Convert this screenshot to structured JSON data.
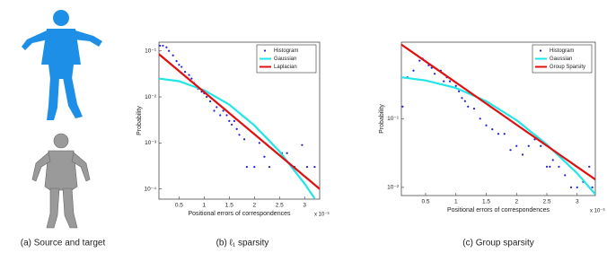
{
  "figure_a": {
    "caption": "(a) Source and target"
  },
  "chart_data": [
    {
      "type": "line",
      "caption": "(b) ℓ₁ sparsity",
      "xlabel": "Positional errors of correspondences",
      "ylabel": "Probability",
      "x_multiplier": "x 10⁻³",
      "log_y": true,
      "legend": "upper right",
      "xlim": [
        0.1,
        3.3
      ],
      "xticks": [
        0.5,
        1,
        1.5,
        2,
        2.5,
        3
      ],
      "ylim": [
        6e-05,
        0.155
      ],
      "yticks": [
        {
          "value": 0.1,
          "label": "10⁻¹"
        },
        {
          "value": 0.01,
          "label": "10⁻²"
        },
        {
          "value": 0.001,
          "label": "10⁻³"
        },
        {
          "value": 0.0001,
          "label": "10⁻⁴"
        }
      ],
      "series": [
        {
          "name": "Histogram",
          "color": "#1f1fd6",
          "style": "points",
          "x": [
            0.12,
            0.18,
            0.25,
            0.3,
            0.38,
            0.45,
            0.5,
            0.55,
            0.62,
            0.7,
            0.75,
            0.8,
            0.88,
            0.95,
            1.0,
            1.05,
            1.12,
            1.2,
            1.25,
            1.32,
            1.38,
            1.45,
            1.5,
            1.55,
            1.6,
            1.65,
            1.7,
            1.8,
            1.85,
            2.0,
            2.1,
            2.2,
            2.3,
            2.45,
            2.55,
            2.65,
            2.8,
            2.95,
            3.05,
            3.2
          ],
          "values": [
            0.13,
            0.13,
            0.12,
            0.1,
            0.08,
            0.06,
            0.05,
            0.045,
            0.035,
            0.03,
            0.025,
            0.02,
            0.015,
            0.013,
            0.012,
            0.01,
            0.008,
            0.005,
            0.006,
            0.004,
            0.005,
            0.004,
            0.003,
            0.0025,
            0.003,
            0.002,
            0.0015,
            0.0012,
            0.0003,
            0.0003,
            0.001,
            0.0005,
            0.0003,
            0.0006,
            0.0006,
            0.0006,
            0.0003,
            0.0009,
            0.0003,
            0.0003
          ]
        },
        {
          "name": "Gaussian",
          "color": "#22e6e6",
          "style": "line",
          "x": [
            0.1,
            0.5,
            1,
            1.5,
            2,
            2.5,
            3,
            3.2
          ],
          "values": [
            0.025,
            0.022,
            0.014,
            0.0068,
            0.0024,
            0.00065,
            0.00013,
            6.2e-05
          ]
        },
        {
          "name": "Laplacian",
          "color": "#e01010",
          "style": "line",
          "x": [
            0.1,
            3.3
          ],
          "values": [
            0.085,
            0.0001
          ]
        }
      ]
    },
    {
      "type": "line",
      "caption": "(c) Group sparsity",
      "xlabel": "Positional errors of correspondences",
      "ylabel": "Probability",
      "x_multiplier": "x 10⁻³",
      "log_y": true,
      "legend": "upper right",
      "xlim": [
        0.1,
        3.3
      ],
      "xticks": [
        0.5,
        1,
        1.5,
        2,
        2.5,
        3
      ],
      "ylim": [
        0.0076,
        1.3
      ],
      "yticks": [
        {
          "value": 0.1,
          "label": "10⁻¹"
        },
        {
          "value": 0.01,
          "label": "10⁻²"
        }
      ],
      "series": [
        {
          "name": "Histogram",
          "color": "#1f1fd6",
          "style": "points",
          "x": [
            0.12,
            0.2,
            0.3,
            0.4,
            0.45,
            0.55,
            0.6,
            0.65,
            0.75,
            0.8,
            0.85,
            0.9,
            1.0,
            1.05,
            1.1,
            1.15,
            1.2,
            1.3,
            1.4,
            1.5,
            1.6,
            1.7,
            1.8,
            1.9,
            2.0,
            2.1,
            2.2,
            2.3,
            2.4,
            2.5,
            2.55,
            2.6,
            2.7,
            2.8,
            2.9,
            3.0,
            3.1,
            3.2,
            3.25
          ],
          "values": [
            0.15,
            0.4,
            0.5,
            0.7,
            0.75,
            0.6,
            0.55,
            0.45,
            0.5,
            0.35,
            0.4,
            0.35,
            0.3,
            0.25,
            0.2,
            0.18,
            0.15,
            0.14,
            0.1,
            0.08,
            0.07,
            0.06,
            0.06,
            0.035,
            0.04,
            0.03,
            0.04,
            0.05,
            0.04,
            0.02,
            0.02,
            0.025,
            0.02,
            0.015,
            0.01,
            0.01,
            0.012,
            0.02,
            0.01
          ]
        },
        {
          "name": "Gaussian",
          "color": "#22e6e6",
          "style": "line",
          "x": [
            0.1,
            0.5,
            1,
            1.5,
            2,
            2.5,
            3,
            3.3
          ],
          "values": [
            0.4,
            0.36,
            0.28,
            0.18,
            0.095,
            0.042,
            0.016,
            0.0079
          ]
        },
        {
          "name": "Group Sparsity",
          "color": "#e01010",
          "style": "line",
          "x": [
            0.1,
            3.3
          ],
          "values": [
            1.2,
            0.013
          ]
        }
      ]
    }
  ]
}
